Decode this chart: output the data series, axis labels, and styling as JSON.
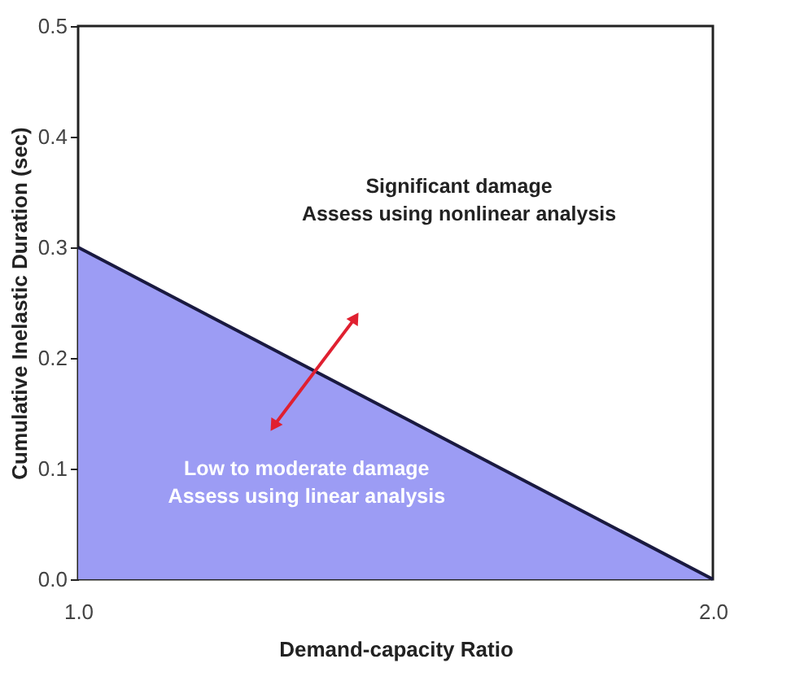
{
  "chart_data": {
    "type": "area",
    "xlabel": "Demand-capacity Ratio",
    "ylabel": "Cumulative Inelastic Duration (sec)",
    "x": [
      1.0,
      2.0
    ],
    "series": [
      {
        "color": "#9c9cf4",
        "values": [
          0.3,
          0.0
        ]
      }
    ],
    "xlim": [
      1.0,
      2.0
    ],
    "ylim": [
      0.0,
      0.5
    ],
    "xticks": [
      {
        "value": 1.0,
        "label": "1.0"
      },
      {
        "value": 2.0,
        "label": "2.0"
      }
    ],
    "yticks": [
      {
        "value": 0.0,
        "label": "0.0"
      },
      {
        "value": 0.1,
        "label": "0.1"
      },
      {
        "value": 0.2,
        "label": "0.2"
      },
      {
        "value": 0.3,
        "label": "0.3"
      },
      {
        "value": 0.4,
        "label": "0.4"
      },
      {
        "value": 0.5,
        "label": "0.5"
      }
    ],
    "grid": false,
    "annotations": [
      "Significant damage\nAssess using nonlinear analysis",
      "Low to moderate damage\nAssess using linear analysis"
    ]
  }
}
